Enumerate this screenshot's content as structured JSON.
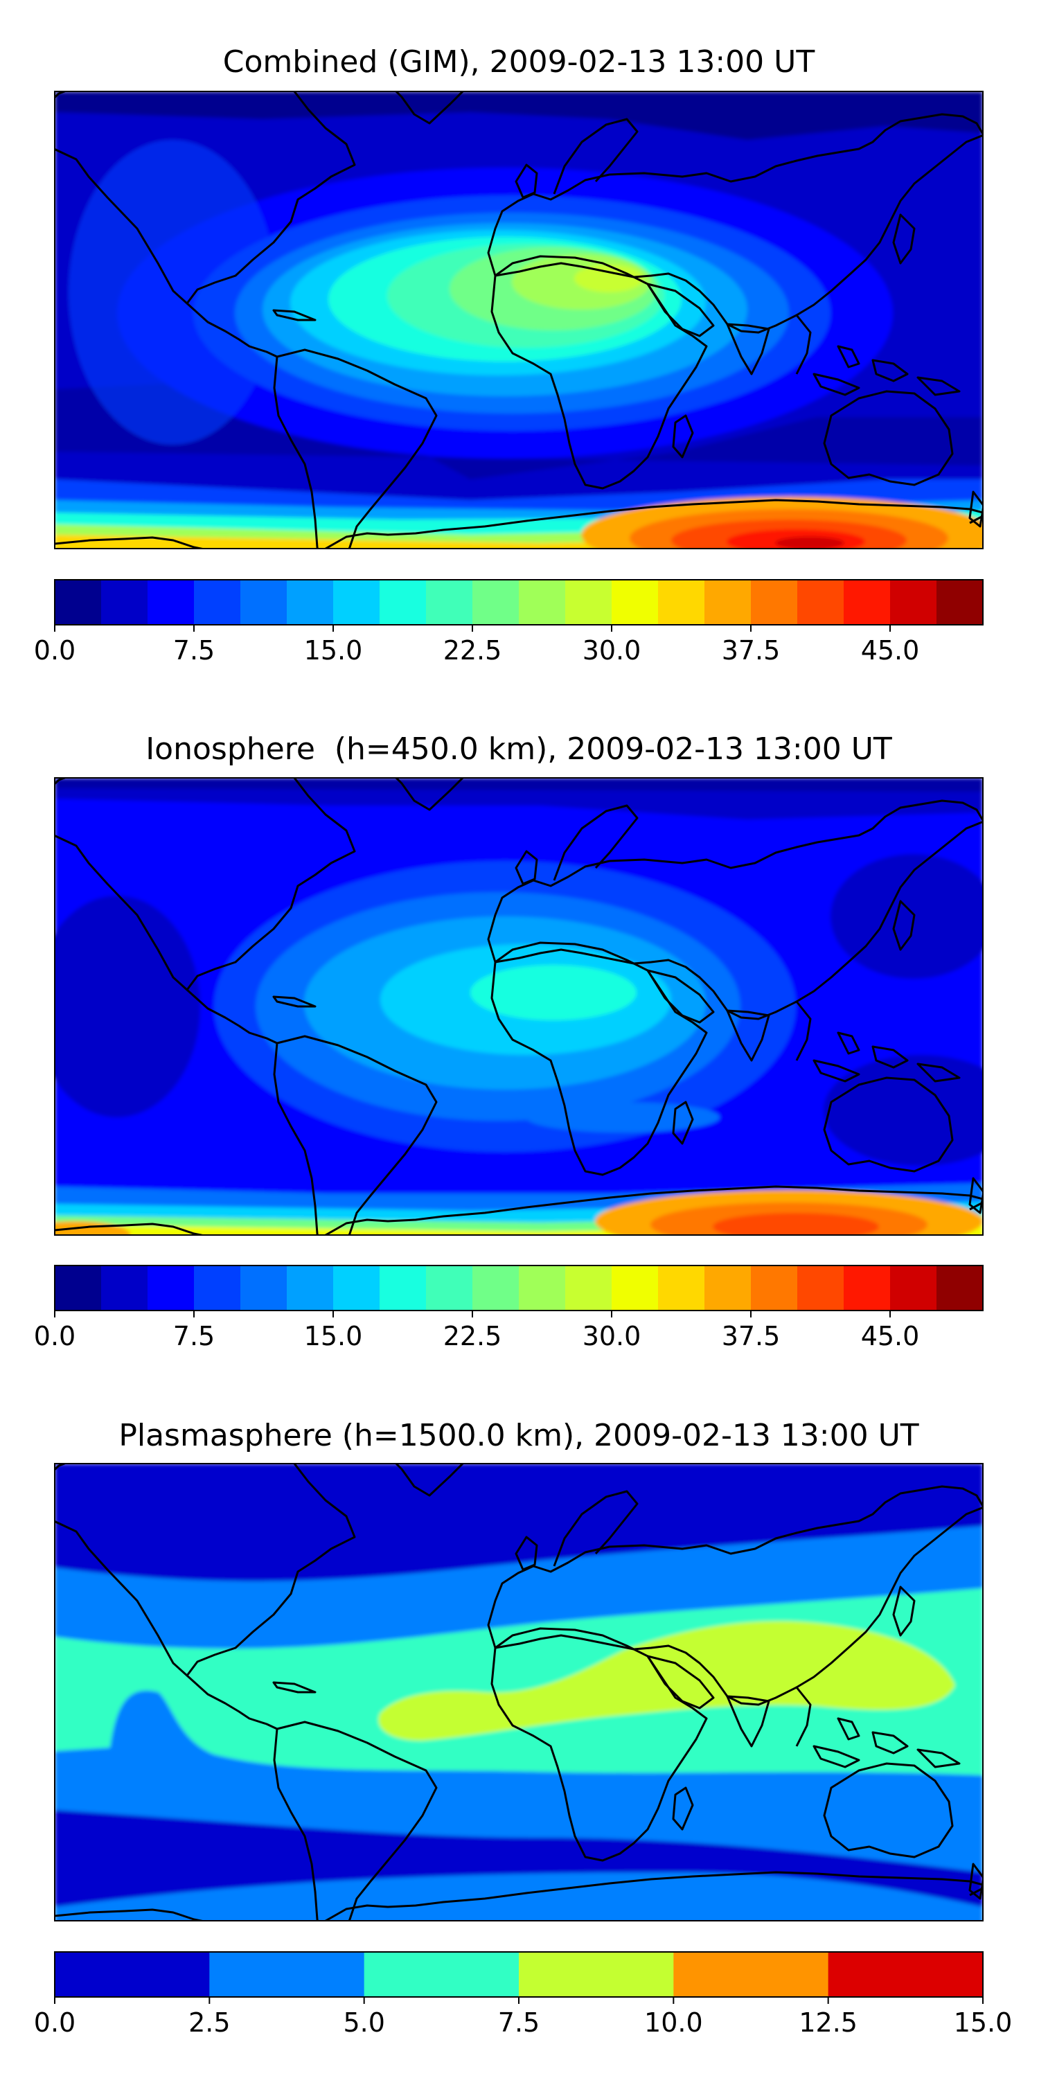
{
  "colors": {
    "jet20": [
      "#00008f",
      "#0000c8",
      "#0000ff",
      "#0040ff",
      "#0070ff",
      "#00a0ff",
      "#00d0ff",
      "#18ffe0",
      "#40ffb8",
      "#70ff88",
      "#a0ff58",
      "#c8ff30",
      "#f0ff00",
      "#ffd800",
      "#ffa800",
      "#ff7800",
      "#ff4800",
      "#ff1800",
      "#d00000",
      "#900000"
    ],
    "jet6": [
      "#0000cd",
      "#0080ff",
      "#31ffc4",
      "#c4ff31",
      "#ff9400",
      "#dc0000"
    ],
    "coast": "#000000"
  },
  "chart_data": [
    {
      "type": "heatmap",
      "title": "Combined (GIM), 2009-02-13 13:00 UT",
      "colorbar": {
        "range": [
          0,
          50
        ],
        "levels": 20,
        "ticks": [
          0,
          7.5,
          15,
          22.5,
          30,
          37.5,
          45
        ],
        "tick_labels": [
          "0.0",
          "7.5",
          "15.0",
          "22.5",
          "30.0",
          "37.5",
          "45.0"
        ]
      },
      "field_features": [
        {
          "feature": "background",
          "value": 5
        },
        {
          "feature": "equatorial_crest_africa_atlantic",
          "value": 27
        },
        {
          "feature": "south_polar_maximum_east",
          "value": 46
        },
        {
          "feature": "south_polar_band",
          "value": 30
        }
      ]
    },
    {
      "type": "heatmap",
      "title": "Ionosphere  (h=450.0 km), 2009-02-13 13:00 UT",
      "colorbar": {
        "range": [
          0,
          50
        ],
        "levels": 20,
        "ticks": [
          0,
          7.5,
          15,
          22.5,
          30,
          37.5,
          45
        ],
        "tick_labels": [
          "0.0",
          "7.5",
          "15.0",
          "22.5",
          "30.0",
          "37.5",
          "45.0"
        ]
      },
      "field_features": [
        {
          "feature": "background",
          "value": 3
        },
        {
          "feature": "equatorial_crest_africa_atlantic",
          "value": 17
        },
        {
          "feature": "south_polar_maximum_east",
          "value": 42
        },
        {
          "feature": "south_polar_band",
          "value": 25
        }
      ]
    },
    {
      "type": "heatmap",
      "title": "Plasmasphere (h=1500.0 km), 2009-02-13 13:00 UT",
      "colorbar": {
        "range": [
          0,
          15
        ],
        "levels": 6,
        "ticks": [
          0,
          2.5,
          5,
          7.5,
          10,
          12.5,
          15
        ],
        "tick_labels": [
          "0.0",
          "2.5",
          "5.0",
          "7.5",
          "10.0",
          "12.5",
          "15.0"
        ]
      },
      "field_features": [
        {
          "feature": "polar_regions",
          "value": 1.5
        },
        {
          "feature": "mid_latitude_band",
          "value": 4
        },
        {
          "feature": "equatorial_band",
          "value": 6
        },
        {
          "feature": "low_latitude_crest",
          "value": 8.5
        }
      ]
    }
  ]
}
